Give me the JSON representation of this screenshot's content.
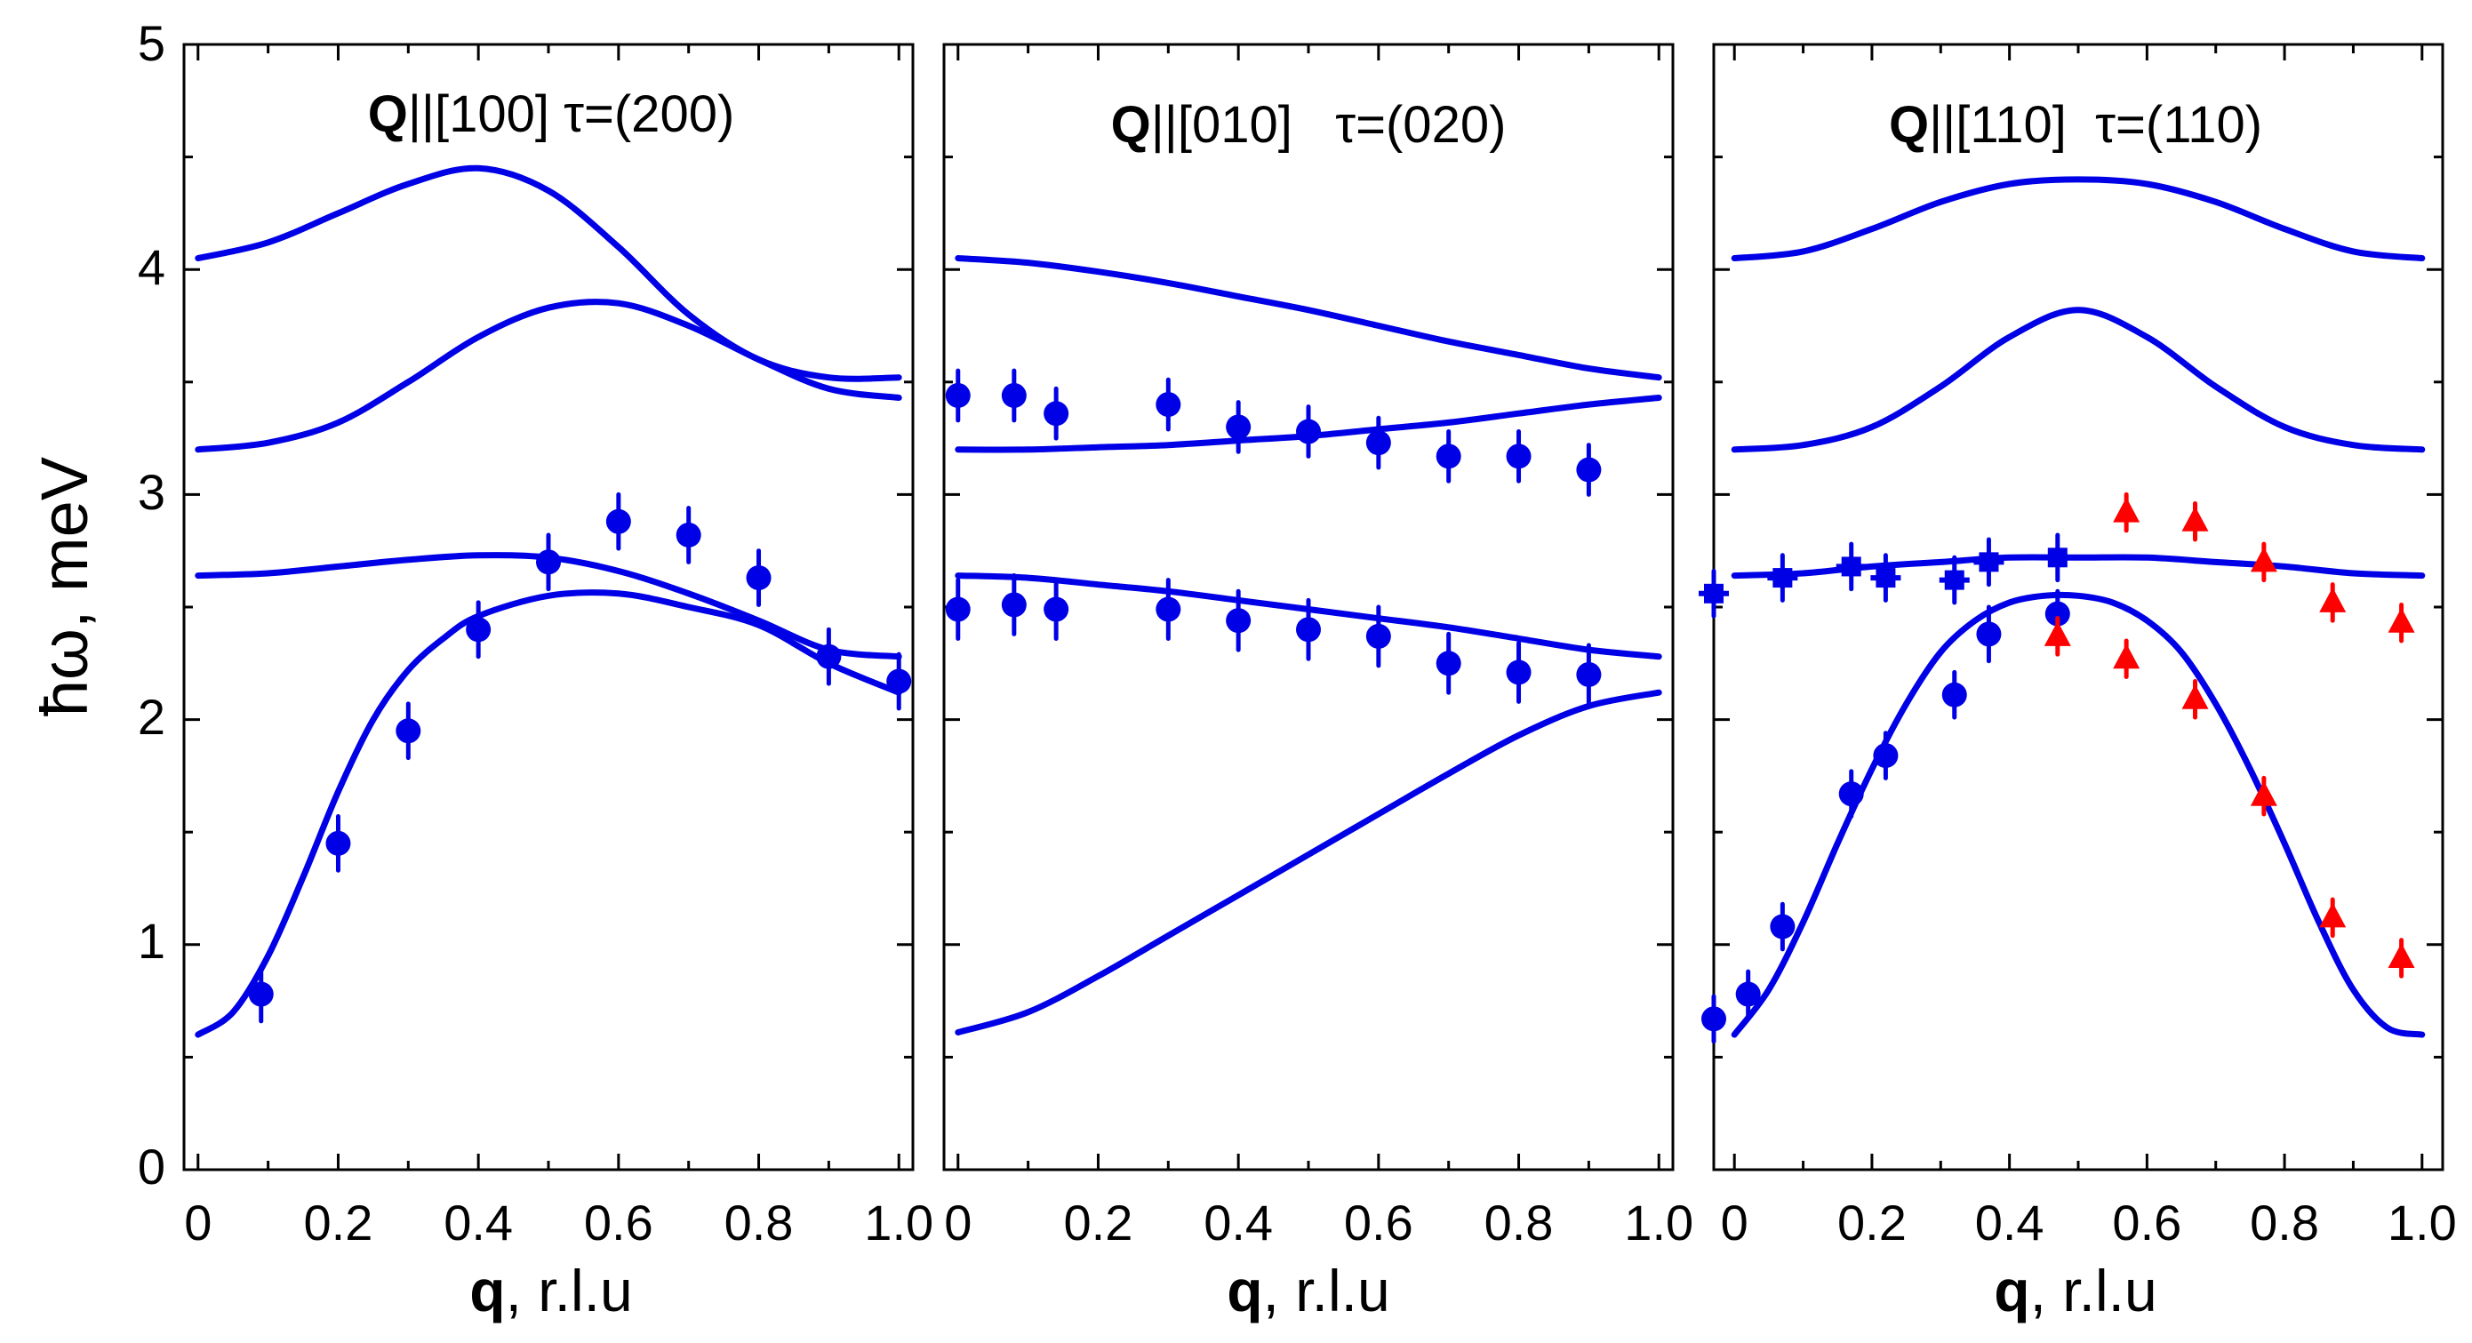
{
  "figure": {
    "ylabel": "ħω, meV",
    "xlabel_bold": "q",
    "xlabel_rest": ", r.l.u",
    "y_ticks": [
      0,
      1,
      2,
      3,
      4,
      5
    ],
    "y_tick_labels": [
      "0",
      "1",
      "2",
      "3",
      "4",
      "5"
    ],
    "colors": {
      "model": "#0000e6",
      "data_blue": "#0000e6",
      "data_red": "#ff0000"
    }
  },
  "chart_data": [
    {
      "type": "line",
      "title_bold": "Q",
      "title_rest": "||[100] τ=(200)",
      "x_tick_labels": [
        "0",
        "0.2",
        "0.4",
        "0.6",
        "0.8",
        "1.0"
      ],
      "xlim": [
        -0.02,
        1.02
      ],
      "ylim": [
        0,
        5
      ],
      "model_curves": [
        {
          "x": [
            0,
            0.1,
            0.2,
            0.3,
            0.4,
            0.5,
            0.6,
            0.7,
            0.8,
            0.9,
            1.0
          ],
          "y": [
            4.05,
            4.12,
            4.25,
            4.38,
            4.45,
            4.35,
            4.1,
            3.8,
            3.6,
            3.52,
            3.52
          ]
        },
        {
          "x": [
            0,
            0.1,
            0.2,
            0.3,
            0.4,
            0.5,
            0.6,
            0.7,
            0.8,
            0.9,
            1.0
          ],
          "y": [
            3.2,
            3.23,
            3.32,
            3.5,
            3.7,
            3.83,
            3.85,
            3.75,
            3.6,
            3.47,
            3.43
          ]
        },
        {
          "x": [
            0,
            0.1,
            0.2,
            0.3,
            0.4,
            0.5,
            0.6,
            0.7,
            0.8,
            0.9,
            1.0
          ],
          "y": [
            2.64,
            2.65,
            2.68,
            2.71,
            2.73,
            2.72,
            2.66,
            2.56,
            2.44,
            2.31,
            2.28
          ]
        },
        {
          "x": [
            0,
            0.05,
            0.1,
            0.15,
            0.2,
            0.25,
            0.3,
            0.35,
            0.4,
            0.5,
            0.6,
            0.7,
            0.8,
            0.9,
            1.0
          ],
          "y": [
            0.6,
            0.7,
            0.95,
            1.3,
            1.68,
            2.0,
            2.22,
            2.36,
            2.46,
            2.55,
            2.56,
            2.5,
            2.42,
            2.25,
            2.12
          ]
        }
      ],
      "points": [
        {
          "name": "circles",
          "color": "#0000e6",
          "marker": "circle",
          "x": [
            0.09,
            0.2,
            0.3,
            0.4,
            0.5,
            0.6,
            0.7,
            0.8,
            0.9,
            1.0
          ],
          "y": [
            0.78,
            1.45,
            1.95,
            2.4,
            2.7,
            2.88,
            2.82,
            2.63,
            2.28,
            2.17
          ],
          "err": [
            0.12,
            0.12,
            0.12,
            0.12,
            0.12,
            0.12,
            0.12,
            0.12,
            0.12,
            0.12
          ]
        }
      ]
    },
    {
      "type": "line",
      "title_bold": "Q",
      "title_rest": "||[010]   τ=(020)",
      "x_tick_labels": [
        "0",
        "0.2",
        "0.4",
        "0.6",
        "0.8",
        "1.0"
      ],
      "xlim": [
        -0.02,
        1.02
      ],
      "ylim": [
        0,
        5
      ],
      "model_curves": [
        {
          "x": [
            0,
            0.1,
            0.2,
            0.3,
            0.4,
            0.5,
            0.6,
            0.7,
            0.8,
            0.9,
            1.0
          ],
          "y": [
            4.05,
            4.03,
            3.99,
            3.94,
            3.88,
            3.82,
            3.75,
            3.68,
            3.62,
            3.56,
            3.52
          ]
        },
        {
          "x": [
            0,
            0.1,
            0.2,
            0.3,
            0.4,
            0.5,
            0.6,
            0.7,
            0.8,
            0.9,
            1.0
          ],
          "y": [
            3.2,
            3.2,
            3.21,
            3.22,
            3.24,
            3.26,
            3.29,
            3.32,
            3.36,
            3.4,
            3.43
          ]
        },
        {
          "x": [
            0,
            0.1,
            0.2,
            0.3,
            0.4,
            0.5,
            0.6,
            0.7,
            0.8,
            0.9,
            1.0
          ],
          "y": [
            2.64,
            2.63,
            2.6,
            2.57,
            2.53,
            2.49,
            2.45,
            2.41,
            2.36,
            2.31,
            2.28
          ]
        },
        {
          "x": [
            0,
            0.1,
            0.2,
            0.3,
            0.4,
            0.5,
            0.6,
            0.7,
            0.8,
            0.9,
            1.0
          ],
          "y": [
            0.61,
            0.7,
            0.86,
            1.04,
            1.22,
            1.4,
            1.58,
            1.76,
            1.93,
            2.06,
            2.12
          ]
        }
      ],
      "points": [
        {
          "name": "circles-upper",
          "color": "#0000e6",
          "marker": "circle",
          "x": [
            0.0,
            0.08,
            0.14,
            0.3,
            0.4,
            0.5,
            0.6,
            0.7,
            0.8,
            0.9
          ],
          "y": [
            3.44,
            3.44,
            3.36,
            3.4,
            3.3,
            3.28,
            3.23,
            3.17,
            3.17,
            3.11
          ],
          "err": [
            0.11,
            0.11,
            0.11,
            0.11,
            0.11,
            0.11,
            0.11,
            0.11,
            0.11,
            0.11
          ]
        },
        {
          "name": "circles-lower",
          "color": "#0000e6",
          "marker": "circle",
          "x": [
            0.0,
            0.08,
            0.14,
            0.3,
            0.4,
            0.5,
            0.6,
            0.7,
            0.8,
            0.9
          ],
          "y": [
            2.49,
            2.51,
            2.49,
            2.49,
            2.44,
            2.4,
            2.37,
            2.25,
            2.21,
            2.2
          ],
          "err": [
            0.13,
            0.13,
            0.13,
            0.13,
            0.13,
            0.13,
            0.13,
            0.13,
            0.13,
            0.13
          ]
        }
      ]
    },
    {
      "type": "line",
      "title_bold": "Q",
      "title_rest": "||[110]  τ=(110)",
      "x_tick_labels": [
        "0",
        "0.2",
        "0.4",
        "0.6",
        "0.8",
        "1.0"
      ],
      "xlim": [
        -0.03,
        1.03
      ],
      "ylim": [
        0,
        5
      ],
      "model_curves": [
        {
          "x": [
            0,
            0.1,
            0.2,
            0.3,
            0.4,
            0.5,
            0.6,
            0.7,
            0.8,
            0.9,
            1.0
          ],
          "y": [
            4.05,
            4.08,
            4.18,
            4.3,
            4.38,
            4.4,
            4.38,
            4.3,
            4.18,
            4.08,
            4.05
          ]
        },
        {
          "x": [
            0,
            0.1,
            0.2,
            0.3,
            0.4,
            0.5,
            0.6,
            0.7,
            0.8,
            0.9,
            1.0
          ],
          "y": [
            3.2,
            3.22,
            3.3,
            3.48,
            3.7,
            3.82,
            3.7,
            3.48,
            3.3,
            3.22,
            3.2
          ]
        },
        {
          "x": [
            0,
            0.1,
            0.2,
            0.3,
            0.4,
            0.5,
            0.6,
            0.7,
            0.8,
            0.9,
            1.0
          ],
          "y": [
            2.64,
            2.65,
            2.68,
            2.7,
            2.72,
            2.72,
            2.72,
            2.7,
            2.68,
            2.65,
            2.64
          ]
        },
        {
          "x": [
            0,
            0.05,
            0.1,
            0.15,
            0.2,
            0.25,
            0.3,
            0.35,
            0.4,
            0.45,
            0.5,
            0.55,
            0.6,
            0.65,
            0.7,
            0.75,
            0.8,
            0.85,
            0.9,
            0.95,
            1.0
          ],
          "y": [
            0.6,
            0.8,
            1.1,
            1.45,
            1.78,
            2.07,
            2.3,
            2.44,
            2.52,
            2.55,
            2.55,
            2.52,
            2.44,
            2.3,
            2.07,
            1.78,
            1.45,
            1.1,
            0.8,
            0.63,
            0.6
          ]
        }
      ],
      "points": [
        {
          "name": "circles",
          "color": "#0000e6",
          "marker": "circle",
          "x": [
            -0.03,
            0.02,
            0.07,
            0.17,
            0.22,
            0.32,
            0.37,
            0.47
          ],
          "y": [
            0.67,
            0.78,
            1.08,
            1.67,
            1.84,
            2.11,
            2.38,
            2.47
          ],
          "err": [
            0.1,
            0.1,
            0.1,
            0.1,
            0.1,
            0.1,
            0.12,
            0.1
          ]
        },
        {
          "name": "crosses",
          "color": "#0000e6",
          "marker": "square-cross",
          "x": [
            -0.03,
            0.07,
            0.17,
            0.22,
            0.32,
            0.37,
            0.47
          ],
          "y": [
            2.56,
            2.63,
            2.68,
            2.63,
            2.62,
            2.7,
            2.72
          ],
          "err": [
            0.1,
            0.1,
            0.1,
            0.1,
            0.1,
            0.1,
            0.1
          ]
        },
        {
          "name": "triangles",
          "color": "#ff0000",
          "marker": "triangle",
          "x": [
            0.47,
            0.57,
            0.67,
            0.77,
            0.87,
            0.97
          ],
          "y": [
            2.37,
            2.27,
            2.09,
            1.66,
            1.12,
            0.94
          ],
          "err": [
            0.08,
            0.08,
            0.08,
            0.08,
            0.08,
            0.08
          ]
        },
        {
          "name": "triangles-upper",
          "color": "#ff0000",
          "marker": "triangle",
          "x": [
            0.57,
            0.67,
            0.77,
            0.87,
            0.97
          ],
          "y": [
            2.92,
            2.88,
            2.7,
            2.52,
            2.43
          ],
          "err": [
            0.08,
            0.08,
            0.08,
            0.08,
            0.08
          ]
        }
      ]
    }
  ]
}
